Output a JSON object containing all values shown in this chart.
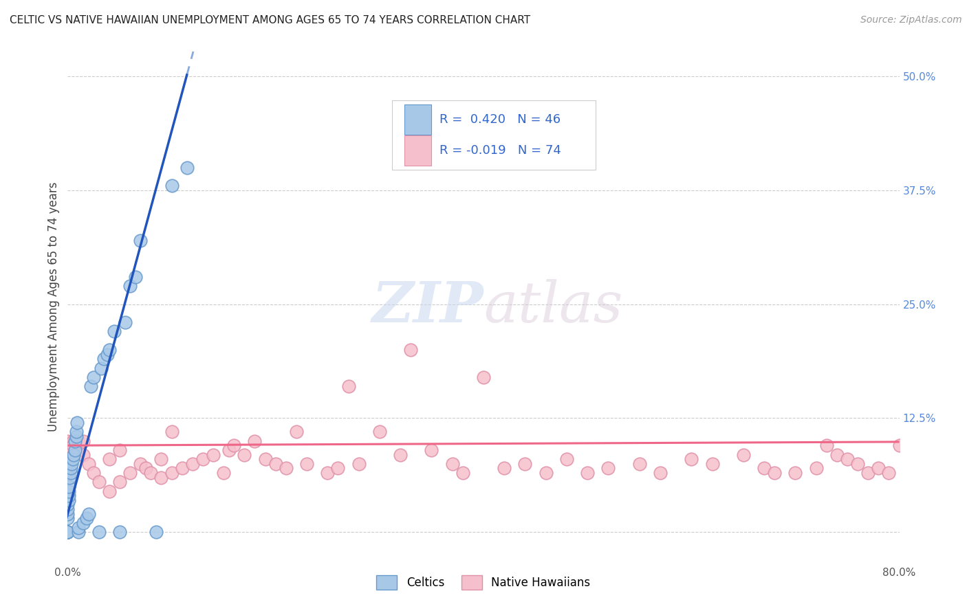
{
  "title": "CELTIC VS NATIVE HAWAIIAN UNEMPLOYMENT AMONG AGES 65 TO 74 YEARS CORRELATION CHART",
  "source": "Source: ZipAtlas.com",
  "ylabel": "Unemployment Among Ages 65 to 74 years",
  "xlim": [
    0.0,
    0.8
  ],
  "ylim": [
    -0.035,
    0.53
  ],
  "xticks": [
    0.0,
    0.2,
    0.4,
    0.6,
    0.8
  ],
  "xtick_labels": [
    "0.0%",
    "",
    "",
    "",
    "80.0%"
  ],
  "yticks_right": [
    0.0,
    0.125,
    0.25,
    0.375,
    0.5
  ],
  "ytick_right_labels": [
    "",
    "12.5%",
    "25.0%",
    "37.5%",
    "50.0%"
  ],
  "celtic_color": "#a8c8e8",
  "celtic_edge": "#6699cc",
  "native_color": "#f5c0cc",
  "native_edge": "#e090a8",
  "trend_celtic_color": "#2255bb",
  "trend_celtic_dashed_color": "#88aadd",
  "trend_native_color": "#ee6688",
  "R_celtic": 0.42,
  "N_celtic": 46,
  "R_native": -0.019,
  "N_native": 74,
  "watermark_zip": "ZIP",
  "watermark_atlas": "atlas",
  "background_color": "#ffffff",
  "grid_color": "#cccccc",
  "title_fontsize": 11,
  "source_fontsize": 10,
  "legend_fontsize": 13,
  "axis_label_fontsize": 12,
  "tick_fontsize": 11,
  "trend_celtic_slope": 4.2,
  "trend_celtic_intercept": 0.02,
  "trend_celtic_x_start": -0.005,
  "trend_celtic_x_solid_end": 0.115,
  "trend_celtic_x_dash_end": 0.155,
  "trend_native_slope": 0.005,
  "trend_native_intercept": 0.095,
  "trend_native_x_start": 0.0,
  "trend_native_x_end": 0.8,
  "celtic_x": [
    0.0,
    0.0,
    0.0,
    0.0,
    0.0,
    0.0,
    0.0,
    0.0,
    0.0,
    0.0,
    0.001,
    0.001,
    0.001,
    0.001,
    0.002,
    0.003,
    0.003,
    0.004,
    0.005,
    0.006,
    0.007,
    0.007,
    0.008,
    0.008,
    0.009,
    0.01,
    0.01,
    0.015,
    0.018,
    0.02,
    0.022,
    0.025,
    0.03,
    0.032,
    0.035,
    0.038,
    0.04,
    0.045,
    0.05,
    0.055,
    0.06,
    0.065,
    0.07,
    0.085,
    0.1,
    0.115
  ],
  "celtic_y": [
    0.0,
    0.0,
    0.0,
    0.0,
    0.0,
    0.0,
    0.015,
    0.02,
    0.025,
    0.03,
    0.035,
    0.04,
    0.045,
    0.05,
    0.06,
    0.065,
    0.07,
    0.075,
    0.08,
    0.085,
    0.09,
    0.1,
    0.105,
    0.11,
    0.12,
    0.0,
    0.005,
    0.01,
    0.015,
    0.02,
    0.16,
    0.17,
    0.0,
    0.18,
    0.19,
    0.195,
    0.2,
    0.22,
    0.0,
    0.23,
    0.27,
    0.28,
    0.32,
    0.0,
    0.38,
    0.4
  ],
  "native_x": [
    0.0,
    0.0,
    0.0,
    0.0,
    0.0,
    0.005,
    0.005,
    0.01,
    0.01,
    0.015,
    0.015,
    0.02,
    0.025,
    0.03,
    0.04,
    0.04,
    0.05,
    0.05,
    0.06,
    0.07,
    0.075,
    0.08,
    0.09,
    0.09,
    0.1,
    0.1,
    0.11,
    0.12,
    0.13,
    0.14,
    0.15,
    0.155,
    0.16,
    0.17,
    0.18,
    0.19,
    0.2,
    0.21,
    0.22,
    0.23,
    0.25,
    0.26,
    0.27,
    0.28,
    0.3,
    0.32,
    0.33,
    0.35,
    0.37,
    0.38,
    0.4,
    0.42,
    0.44,
    0.46,
    0.48,
    0.5,
    0.52,
    0.55,
    0.57,
    0.6,
    0.62,
    0.65,
    0.67,
    0.68,
    0.7,
    0.72,
    0.73,
    0.74,
    0.75,
    0.76,
    0.77,
    0.78,
    0.79,
    0.8
  ],
  "native_y": [
    0.065,
    0.075,
    0.09,
    0.095,
    0.1,
    0.1,
    0.095,
    0.09,
    0.1,
    0.085,
    0.1,
    0.075,
    0.065,
    0.055,
    0.045,
    0.08,
    0.055,
    0.09,
    0.065,
    0.075,
    0.07,
    0.065,
    0.06,
    0.08,
    0.065,
    0.11,
    0.07,
    0.075,
    0.08,
    0.085,
    0.065,
    0.09,
    0.095,
    0.085,
    0.1,
    0.08,
    0.075,
    0.07,
    0.11,
    0.075,
    0.065,
    0.07,
    0.16,
    0.075,
    0.11,
    0.085,
    0.2,
    0.09,
    0.075,
    0.065,
    0.17,
    0.07,
    0.075,
    0.065,
    0.08,
    0.065,
    0.07,
    0.075,
    0.065,
    0.08,
    0.075,
    0.085,
    0.07,
    0.065,
    0.065,
    0.07,
    0.095,
    0.085,
    0.08,
    0.075,
    0.065,
    0.07,
    0.065,
    0.095
  ]
}
